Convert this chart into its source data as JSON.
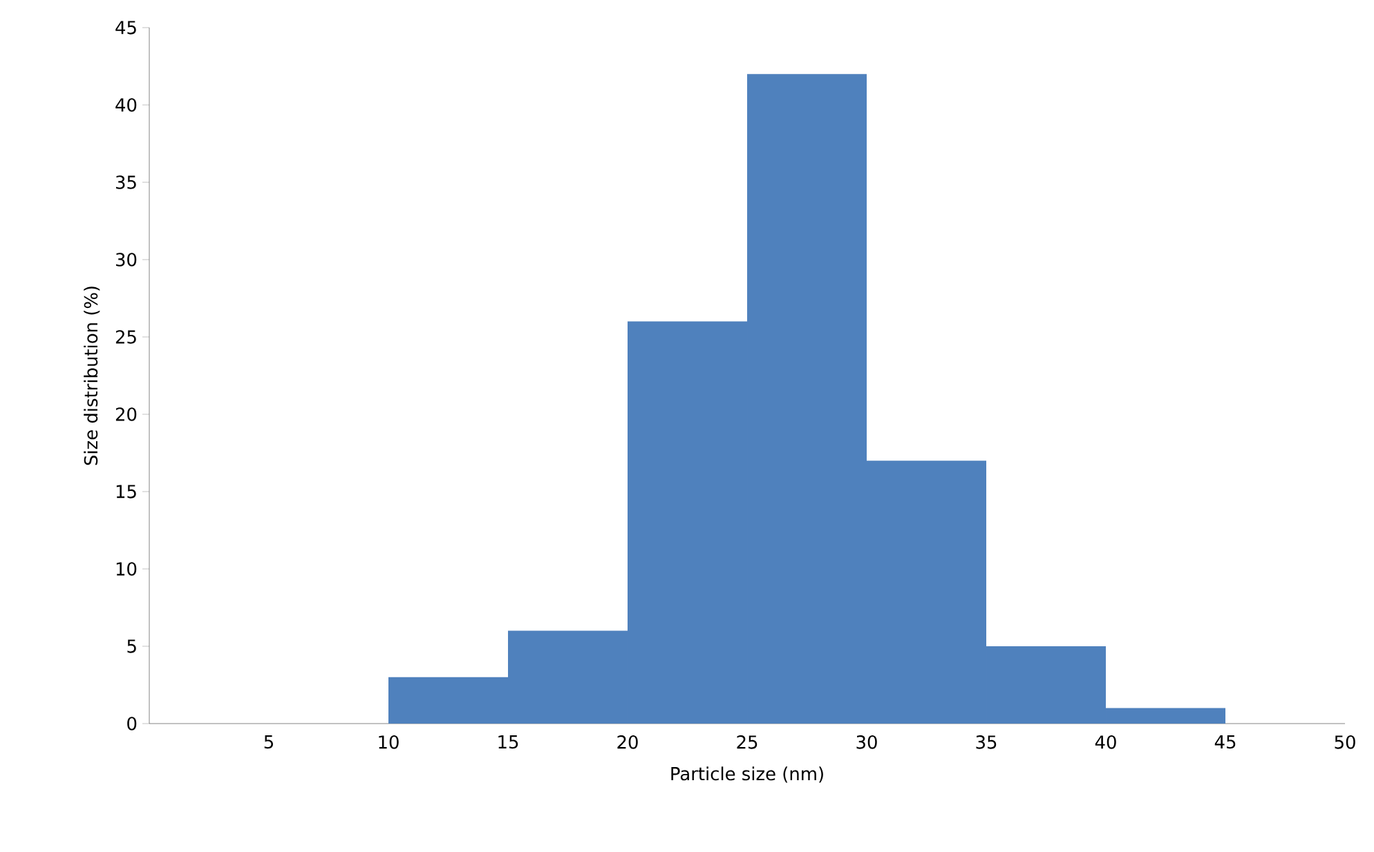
{
  "chart_data": {
    "type": "histogram",
    "xlabel": "Particle size (nm)",
    "ylabel": "Size distribution (%)",
    "bins": [
      0,
      5,
      10,
      15,
      20,
      25,
      30,
      35,
      40,
      45,
      50
    ],
    "values": [
      0,
      0,
      3,
      6,
      26,
      42,
      17,
      5,
      1,
      0
    ],
    "color": "#4f81bd",
    "xlim": [
      0,
      50
    ],
    "xticks": [
      5,
      10,
      15,
      20,
      25,
      30,
      35,
      40,
      45,
      50
    ],
    "ylim": [
      0,
      45
    ],
    "yticks": [
      0,
      5,
      10,
      15,
      20,
      25,
      30,
      35,
      40,
      45
    ]
  }
}
